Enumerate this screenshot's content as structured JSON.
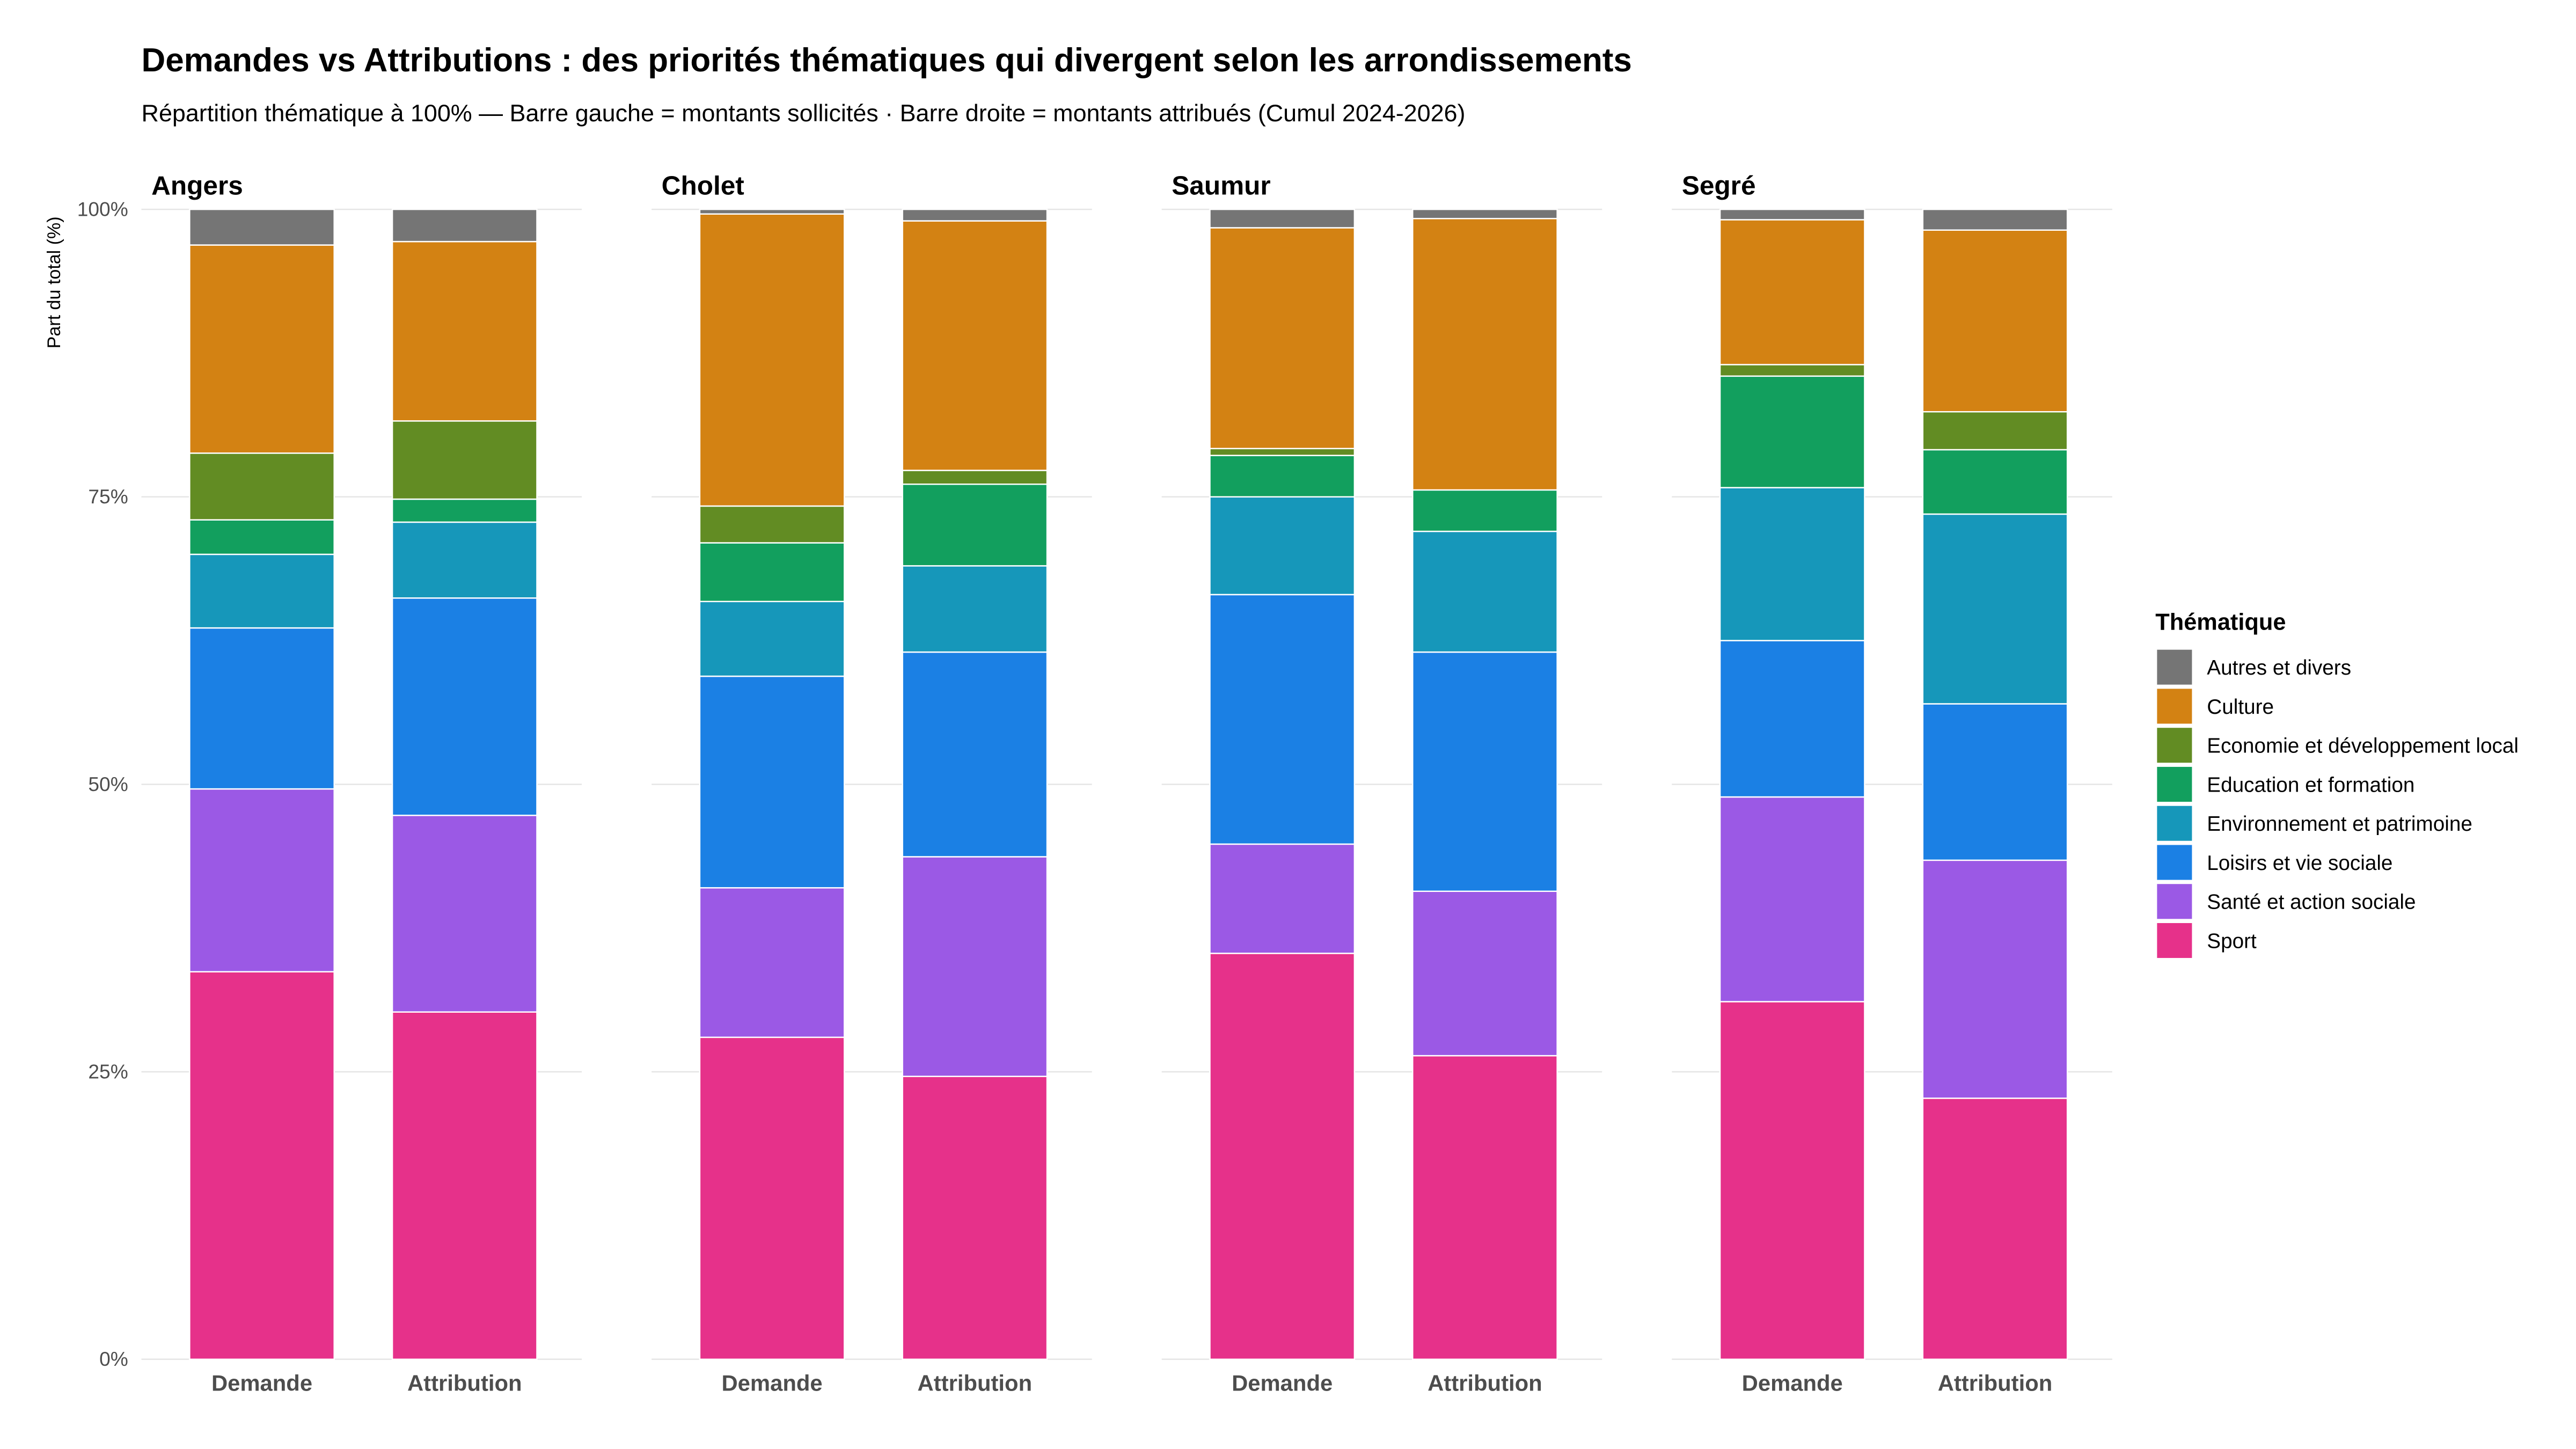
{
  "chart_data": {
    "type": "bar",
    "stacked": true,
    "normalized_percent": true,
    "title": "Demandes vs Attributions : des priorités thématiques qui divergent selon les arrondissements",
    "subtitle": "Répartition thématique à 100% — Barre gauche = montants sollicités · Barre droite = montants attribués (Cumul 2024-2026)",
    "ylabel": "Part du total (%)",
    "xlabel": "",
    "ylim": [
      0,
      100
    ],
    "yticks": [
      "0%",
      "25%",
      "50%",
      "75%",
      "100%"
    ],
    "grid": true,
    "legend": {
      "title": "Thématique",
      "position": "right"
    },
    "categories": [
      "Demande",
      "Attribution"
    ],
    "series": [
      {
        "name": "Autres et divers",
        "color": "#757575"
      },
      {
        "name": "Culture",
        "color": "#D38213"
      },
      {
        "name": "Economie et développement local",
        "color": "#628C23"
      },
      {
        "name": "Education et formation",
        "color": "#129F5E"
      },
      {
        "name": "Environnement et patrimoine",
        "color": "#1697BA"
      },
      {
        "name": "Loisirs et vie sociale",
        "color": "#1B80E4"
      },
      {
        "name": "Santé et action sociale",
        "color": "#9B59E5"
      },
      {
        "name": "Sport",
        "color": "#E6318A"
      }
    ],
    "facets": [
      {
        "name": "Angers",
        "values": {
          "Demande": {
            "Sport": 33.7,
            "Santé et action sociale": 15.9,
            "Loisirs et vie sociale": 14.0,
            "Environnement et patrimoine": 6.4,
            "Education et formation": 3.0,
            "Economie et développement local": 5.8,
            "Culture": 18.1,
            "Autres et divers": 3.1
          },
          "Attribution": {
            "Sport": 30.2,
            "Santé et action sociale": 17.1,
            "Loisirs et vie sociale": 18.9,
            "Environnement et patrimoine": 6.6,
            "Education et formation": 2.0,
            "Economie et développement local": 6.8,
            "Culture": 15.6,
            "Autres et divers": 2.8
          }
        }
      },
      {
        "name": "Cholet",
        "values": {
          "Demande": {
            "Sport": 28.0,
            "Santé et action sociale": 13.0,
            "Loisirs et vie sociale": 18.4,
            "Environnement et patrimoine": 6.5,
            "Education et formation": 5.1,
            "Economie et développement local": 3.2,
            "Culture": 25.4,
            "Autres et divers": 0.4
          },
          "Attribution": {
            "Sport": 24.6,
            "Santé et action sociale": 19.1,
            "Loisirs et vie sociale": 17.8,
            "Environnement et patrimoine": 7.5,
            "Education et formation": 7.1,
            "Economie et développement local": 1.2,
            "Culture": 21.7,
            "Autres et divers": 1.0
          }
        }
      },
      {
        "name": "Saumur",
        "values": {
          "Demande": {
            "Sport": 35.3,
            "Santé et action sociale": 9.5,
            "Loisirs et vie sociale": 21.7,
            "Environnement et patrimoine": 8.5,
            "Education et formation": 3.6,
            "Economie et développement local": 0.6,
            "Culture": 19.2,
            "Autres et divers": 1.6
          },
          "Attribution": {
            "Sport": 26.4,
            "Santé et action sociale": 14.3,
            "Loisirs et vie sociale": 20.8,
            "Environnement et patrimoine": 10.5,
            "Education et formation": 3.6,
            "Economie et développement local": 0,
            "Culture": 23.6,
            "Autres et divers": 0.8
          }
        }
      },
      {
        "name": "Segré",
        "values": {
          "Demande": {
            "Sport": 31.1,
            "Santé et action sociale": 17.8,
            "Loisirs et vie sociale": 13.6,
            "Environnement et patrimoine": 13.3,
            "Education et formation": 9.7,
            "Economie et développement local": 1.0,
            "Culture": 12.6,
            "Autres et divers": 0.9
          },
          "Attribution": {
            "Sport": 22.7,
            "Santé et action sociale": 20.7,
            "Loisirs et vie sociale": 13.6,
            "Environnement et patrimoine": 16.5,
            "Education et formation": 5.6,
            "Economie et développement local": 3.3,
            "Culture": 15.8,
            "Autres et divers": 1.8
          }
        }
      }
    ]
  }
}
